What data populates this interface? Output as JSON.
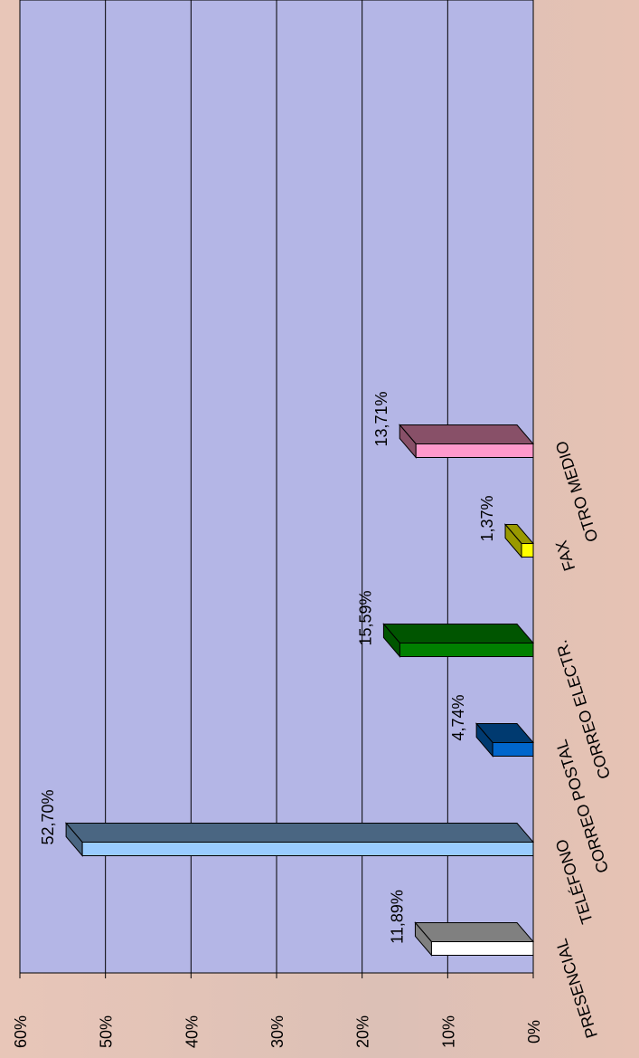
{
  "chart_data": {
    "type": "bar",
    "categories": [
      "PRESENCIAL",
      "TELÉFONO",
      "CORREO POSTAL",
      "CORREO ELECTR.",
      "FAX",
      "OTRO MEDIO"
    ],
    "values": [
      11.89,
      52.7,
      4.74,
      15.59,
      1.37,
      13.71
    ],
    "value_labels": [
      "11,89%",
      "52,70%",
      "4,74%",
      "15,59%",
      "1,37%",
      "13,71%"
    ],
    "colors": [
      "#ffffff",
      "#99ccff",
      "#0066cc",
      "#008000",
      "#ffff00",
      "#ff99cc"
    ],
    "depth_colors": [
      "#808080",
      "#4a6682",
      "#003a70",
      "#005500",
      "#999900",
      "#885068"
    ],
    "ylim": [
      0,
      60
    ],
    "yticks": [
      {
        "value": 0,
        "label": "0%"
      },
      {
        "value": 10,
        "label": "10%"
      },
      {
        "value": 20,
        "label": "20%"
      },
      {
        "value": 30,
        "label": "30%"
      },
      {
        "value": 40,
        "label": "40%"
      },
      {
        "value": 50,
        "label": "50%"
      },
      {
        "value": 60,
        "label": "60%"
      }
    ],
    "grid": true
  }
}
